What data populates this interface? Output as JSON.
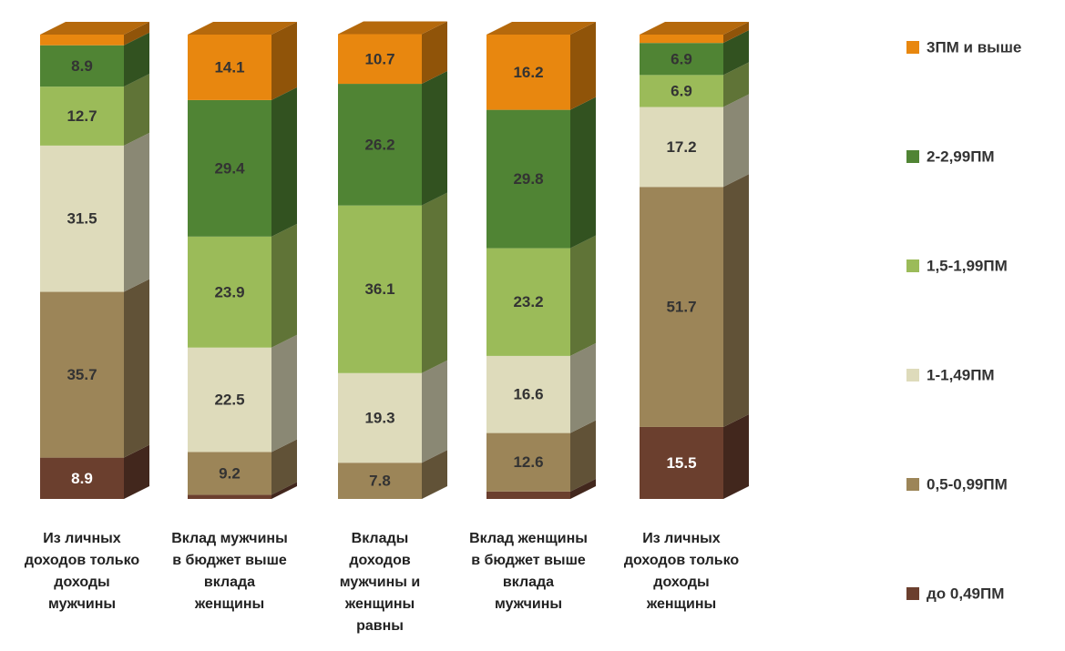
{
  "chart_data": {
    "type": "bar3d_stacked",
    "categories": [
      "Из личных доходов только доходы мужчины",
      "Вклад мужчины в бюджет выше вклада женщины",
      "Вклады доходов мужчины и женщины равны",
      "Вклад женщины в бюджет выше вклада мужчины",
      "Из личных доходов только доходы женщины"
    ],
    "ylim": [
      0,
      100
    ],
    "series": [
      {
        "name": "до 0,49ПМ",
        "color": "#6b3f2e",
        "values": [
          8.9,
          0.9,
          0,
          1.6,
          15.5
        ]
      },
      {
        "name": "0,5-0,99ПМ",
        "color": "#9c8558",
        "values": [
          35.7,
          9.2,
          7.8,
          12.6,
          51.7
        ]
      },
      {
        "name": "1-1,49ПМ",
        "color": "#dedbbb",
        "values": [
          31.5,
          22.5,
          19.3,
          16.6,
          17.2
        ]
      },
      {
        "name": "1,5-1,99ПМ",
        "color": "#9bbb59",
        "values": [
          12.7,
          23.9,
          36.1,
          23.2,
          6.9
        ]
      },
      {
        "name": "2-2,99ПМ",
        "color": "#508434",
        "values": [
          8.9,
          29.4,
          26.2,
          29.8,
          6.9
        ]
      },
      {
        "name": "3ПМ и выше",
        "color": "#e8870f",
        "values": [
          2.3,
          14.1,
          10.7,
          16.2,
          1.8
        ]
      }
    ]
  }
}
